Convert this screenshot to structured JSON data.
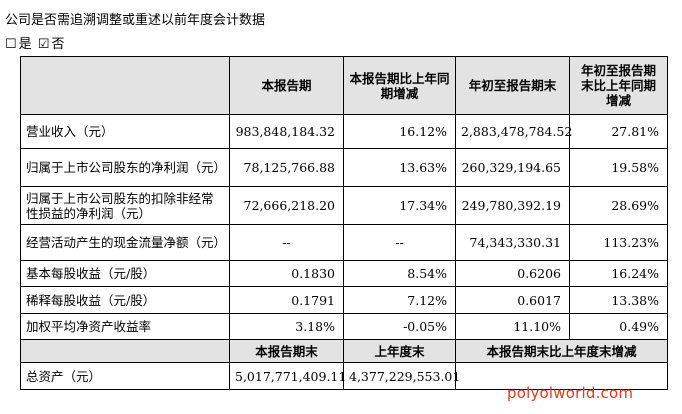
{
  "question": "公司是否需追溯调整或重述以前年度会计数据",
  "options": [
    {
      "box": "☐",
      "label": "是"
    },
    {
      "box": "☑",
      "label": "否"
    }
  ],
  "header": {
    "blank": "",
    "current": "本报告期",
    "yoy": "本报告期比上年同期增减",
    "ytd": "年初至报告期末",
    "ytd_yoy": "年初至报告期末比上年同期增减"
  },
  "rows": [
    {
      "label": "营业收入（元）",
      "current": "983,848,184.32",
      "yoy": "16.12%",
      "ytd": "2,883,478,784.52",
      "ytd_yoy": "27.81%"
    },
    {
      "label": "归属于上市公司股东的净利润（元）",
      "current": "78,125,766.88",
      "yoy": "13.63%",
      "ytd": "260,329,194.65",
      "ytd_yoy": "19.58%"
    },
    {
      "label": "归属于上市公司股东的扣除非经常性损益的净利润（元）",
      "current": "72,666,218.20",
      "yoy": "17.34%",
      "ytd": "249,780,392.19",
      "ytd_yoy": "28.69%"
    },
    {
      "label": "经营活动产生的现金流量净额（元）",
      "current": "--",
      "yoy": "--",
      "ytd": "74,343,330.31",
      "ytd_yoy": "113.23%"
    },
    {
      "label": "基本每股收益（元/股）",
      "current": "0.1830",
      "yoy": "8.54%",
      "ytd": "0.6206",
      "ytd_yoy": "16.24%"
    },
    {
      "label": "稀释每股收益（元/股）",
      "current": "0.1791",
      "yoy": "7.12%",
      "ytd": "0.6017",
      "ytd_yoy": "13.38%"
    },
    {
      "label": "加权平均净资产收益率",
      "current": "3.18%",
      "yoy": "-0.05%",
      "ytd": "11.10%",
      "ytd_yoy": "0.49%"
    }
  ],
  "header2": {
    "blank": "",
    "current_end": "本报告期末",
    "last_year_end": "上年度末",
    "change": "本报告期末比上年度末增减"
  },
  "total_assets": {
    "label": "总资产（元）",
    "current_end": "5,017,771,409.11",
    "last_year_end": "4,377,229,553.01",
    "change": ""
  },
  "watermark": "polyolworld.com",
  "colors": {
    "header_bg": "#e3e3e3",
    "watermark": "#e13b1e"
  }
}
